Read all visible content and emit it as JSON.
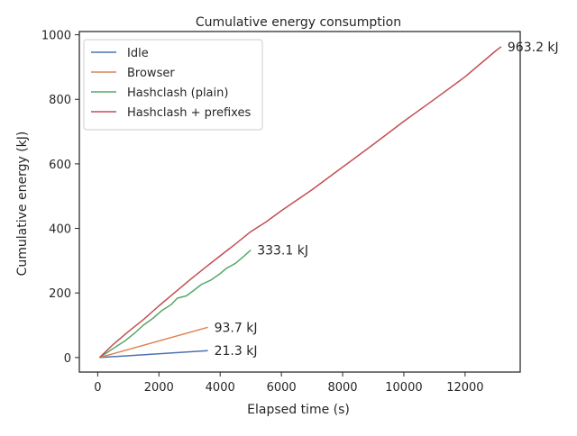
{
  "chart_data": {
    "type": "line",
    "title": "Cumulative energy consumption",
    "xlabel": "Elapsed time (s)",
    "ylabel": "Cumulative energy (kJ)",
    "xlim": [
      -600,
      13800
    ],
    "ylim": [
      -45,
      1010
    ],
    "xticks": [
      0,
      2000,
      4000,
      6000,
      8000,
      10000,
      12000
    ],
    "yticks": [
      0,
      200,
      400,
      600,
      800,
      1000
    ],
    "grid": false,
    "legend_position": "top-left",
    "series": [
      {
        "name": "Idle",
        "color": "#4c72b0",
        "end_label": "21.3 kJ",
        "points": [
          [
            60,
            0
          ],
          [
            3600,
            21.3
          ]
        ]
      },
      {
        "name": "Browser",
        "color": "#dd8452",
        "end_label": "93.7 kJ",
        "points": [
          [
            60,
            0
          ],
          [
            3600,
            93.7
          ]
        ]
      },
      {
        "name": "Hashclash (plain)",
        "color": "#55a868",
        "end_label": "333.1 kJ",
        "points": [
          [
            60,
            0
          ],
          [
            300,
            15
          ],
          [
            600,
            34
          ],
          [
            900,
            52
          ],
          [
            1200,
            75
          ],
          [
            1500,
            101
          ],
          [
            1800,
            121
          ],
          [
            2100,
            146
          ],
          [
            2400,
            164
          ],
          [
            2600,
            184
          ],
          [
            2900,
            191
          ],
          [
            3100,
            205
          ],
          [
            3400,
            227
          ],
          [
            3700,
            240
          ],
          [
            4000,
            260
          ],
          [
            4200,
            276
          ],
          [
            4500,
            292
          ],
          [
            4800,
            316
          ],
          [
            5000,
            333.1
          ]
        ]
      },
      {
        "name": "Hashclash + prefixes",
        "color": "#c44e52",
        "end_label": "963.2 kJ",
        "points": [
          [
            60,
            0
          ],
          [
            500,
            40
          ],
          [
            1000,
            80
          ],
          [
            1500,
            118
          ],
          [
            2000,
            160
          ],
          [
            2500,
            200
          ],
          [
            3000,
            240
          ],
          [
            3500,
            278
          ],
          [
            4000,
            315
          ],
          [
            4500,
            352
          ],
          [
            5000,
            390
          ],
          [
            5500,
            420
          ],
          [
            6000,
            455
          ],
          [
            7000,
            520
          ],
          [
            8000,
            590
          ],
          [
            9000,
            660
          ],
          [
            10000,
            732
          ],
          [
            11000,
            800
          ],
          [
            12000,
            870
          ],
          [
            13000,
            950
          ],
          [
            13180,
            963.2
          ]
        ]
      }
    ]
  }
}
